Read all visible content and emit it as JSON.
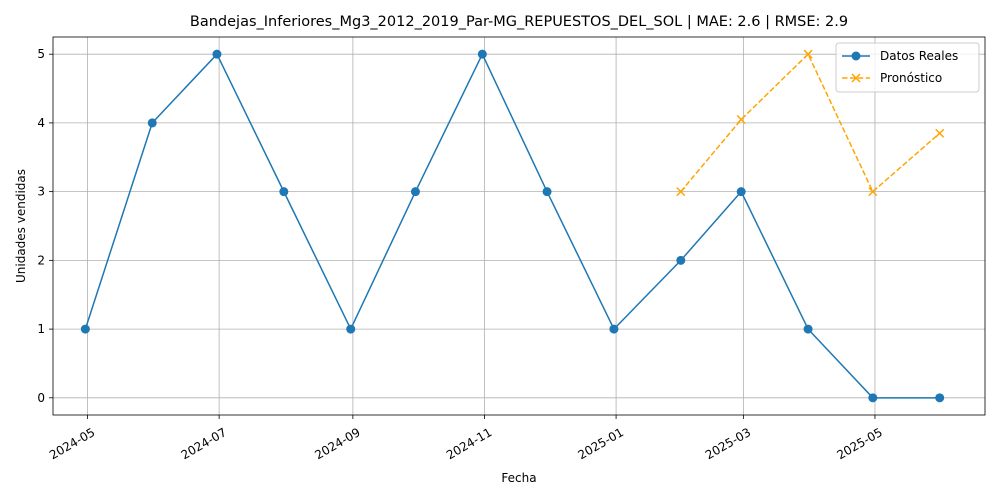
{
  "chart_data": {
    "type": "line",
    "title": "Bandejas_Inferiores_Mg3_2012_2019_Par-MG_REPUESTOS_DEL_SOL | MAE: 2.6 | RMSE: 2.9",
    "xlabel": "Fecha",
    "ylabel": "Unidades vendidas",
    "ylim": [
      -0.25,
      5.25
    ],
    "xlim": [
      "2024-04-15",
      "2025-06-21"
    ],
    "grid": true,
    "legend_position": "top-right",
    "x_ticks": [
      "2024-05",
      "2024-07",
      "2024-09",
      "2024-11",
      "2025-01",
      "2025-03",
      "2025-05"
    ],
    "x_tick_dates": [
      "2024-05-01",
      "2024-07-01",
      "2024-09-01",
      "2024-11-01",
      "2025-01-01",
      "2025-03-01",
      "2025-05-01"
    ],
    "y_ticks": [
      0,
      1,
      2,
      3,
      4,
      5
    ],
    "series": [
      {
        "name": "Datos Reales",
        "color": "#1f77b4",
        "style": "solid",
        "marker": "circle",
        "x": [
          "2024-04-30",
          "2024-05-31",
          "2024-06-30",
          "2024-07-31",
          "2024-08-31",
          "2024-09-30",
          "2024-10-31",
          "2024-11-30",
          "2024-12-31",
          "2025-01-31",
          "2025-02-28",
          "2025-03-31",
          "2025-04-30",
          "2025-05-31"
        ],
        "values": [
          1,
          4,
          5,
          3,
          1,
          3,
          5,
          3,
          1,
          2,
          3,
          1,
          0,
          0
        ]
      },
      {
        "name": "Pronóstico",
        "color": "#ffa500",
        "style": "dashed",
        "marker": "x",
        "x": [
          "2025-01-31",
          "2025-02-28",
          "2025-03-31",
          "2025-04-30",
          "2025-05-31"
        ],
        "values": [
          3.0,
          4.05,
          5.0,
          3.0,
          3.85
        ]
      }
    ]
  }
}
